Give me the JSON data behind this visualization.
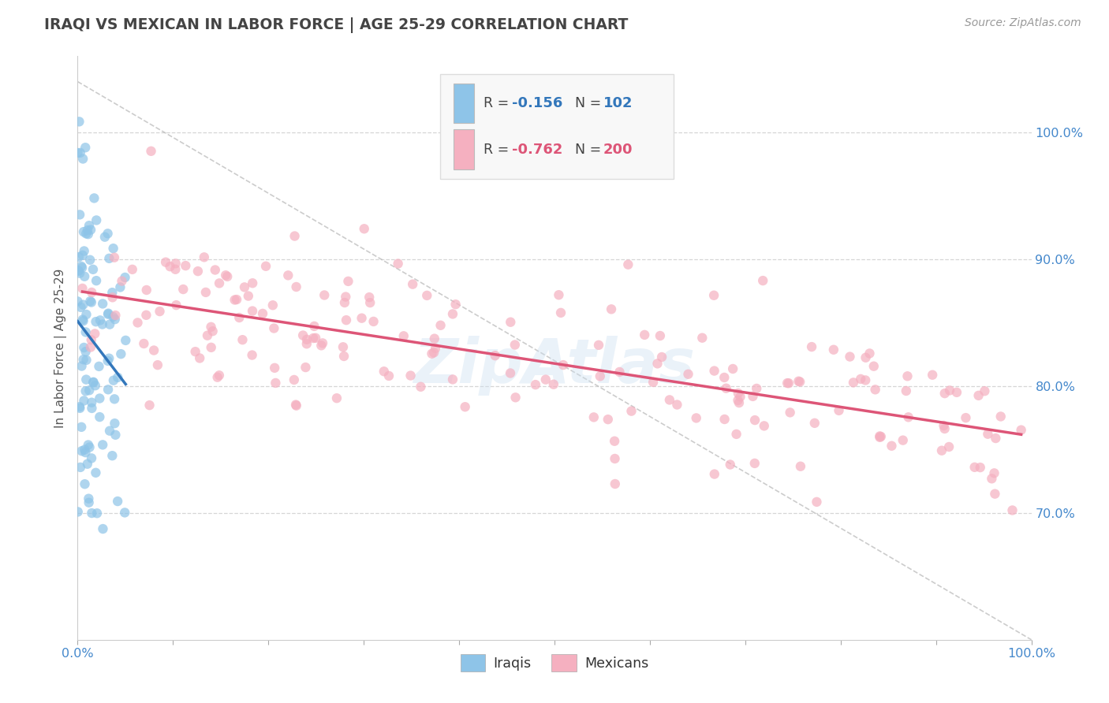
{
  "title": "IRAQI VS MEXICAN IN LABOR FORCE | AGE 25-29 CORRELATION CHART",
  "source": "Source: ZipAtlas.com",
  "ylabel": "In Labor Force | Age 25-29",
  "xlim": [
    0.0,
    1.0
  ],
  "ylim": [
    0.6,
    1.06
  ],
  "iraqi_color": "#8ec4e8",
  "mexican_color": "#f5b0c0",
  "iraqi_R": -0.156,
  "iraqi_N": 102,
  "mexican_R": -0.762,
  "mexican_N": 200,
  "yticks": [
    0.7,
    0.8,
    0.9,
    1.0
  ],
  "ytick_labels": [
    "70.0%",
    "80.0%",
    "90.0%",
    "100.0%"
  ],
  "xtick_labels_show": [
    "0.0%",
    "100.0%"
  ],
  "watermark": "ZipAtlas",
  "background_color": "#ffffff",
  "grid_color": "#cccccc",
  "title_color": "#444444",
  "axis_label_color": "#555555",
  "tick_label_color": "#4488cc",
  "trend_blue": "#3377bb",
  "trend_pink": "#dd5577",
  "diagonal_color": "#bbbbbb",
  "legend_bg": "#f8f8f8",
  "legend_border": "#dddddd"
}
